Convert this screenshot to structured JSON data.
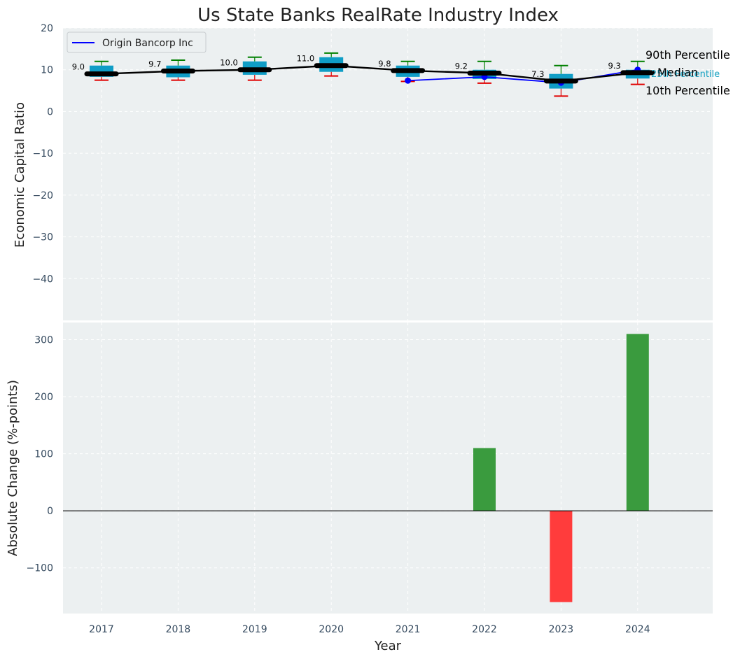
{
  "chart_data": [
    {
      "type": "box",
      "title": "Us State Banks RealRate Industry Index",
      "xlabel": "",
      "ylabel": "Economic Capital Ratio",
      "ylim": [
        -50,
        20
      ],
      "yticks": [
        20,
        10,
        0,
        -10,
        -20,
        -30,
        -40
      ],
      "ytick_labels": [
        "20",
        "10",
        "0",
        "−10",
        "−20",
        "−30",
        "−40"
      ],
      "categories": [
        "2017",
        "2018",
        "2019",
        "2020",
        "2021",
        "2022",
        "2023",
        "2024"
      ],
      "median": [
        9.0,
        9.7,
        10.0,
        11.0,
        9.8,
        9.2,
        7.3,
        9.3
      ],
      "median_labels": [
        "9.0",
        "9.7",
        "10.0",
        "11.0",
        "9.8",
        "9.2",
        "7.3",
        "9.3"
      ],
      "p25": [
        8.3,
        8.2,
        8.8,
        9.5,
        8.3,
        7.8,
        5.5,
        7.9
      ],
      "p75": [
        11.0,
        11.0,
        12.0,
        13.0,
        11.0,
        10.0,
        9.0,
        10.0
      ],
      "p10": [
        7.5,
        7.5,
        7.5,
        8.5,
        7.2,
        6.8,
        3.7,
        6.5
      ],
      "p90": [
        12.0,
        12.3,
        13.0,
        14.0,
        12.0,
        12.0,
        11.0,
        12.0
      ],
      "series": [
        {
          "name": "Origin Bancorp Inc",
          "values": [
            null,
            null,
            null,
            null,
            7.4,
            8.3,
            6.9,
            10.0
          ]
        }
      ],
      "legend": {
        "entries": [
          "Origin Bancorp Inc"
        ],
        "position": "top-left"
      },
      "percentile_labels": {
        "p90": "90th Percentile",
        "median": "Median",
        "p25": "25th Percentile",
        "p10": "10th Percentile"
      },
      "colors": {
        "background": "#ecf0f1",
        "box": "#0f9dc6",
        "median": "#000000",
        "p90_whisker": "#008000",
        "p10_whisker": "#e00000",
        "series": "#0000ff",
        "p25_label": "#1aa3c2"
      }
    },
    {
      "type": "bar",
      "xlabel": "Year",
      "ylabel": "Absolute Change (%-points)",
      "ylim": [
        -180,
        330
      ],
      "yticks": [
        300,
        200,
        100,
        0,
        -100
      ],
      "ytick_labels": [
        "300",
        "200",
        "100",
        "0",
        "−100"
      ],
      "categories": [
        "2017",
        "2018",
        "2019",
        "2020",
        "2021",
        "2022",
        "2023",
        "2024"
      ],
      "values": [
        0,
        0,
        0,
        0,
        0,
        110,
        -160,
        310
      ],
      "colors": {
        "positive": "#3a9b3e",
        "negative": "#ff3c3c",
        "zero_line": "#000000"
      }
    }
  ]
}
